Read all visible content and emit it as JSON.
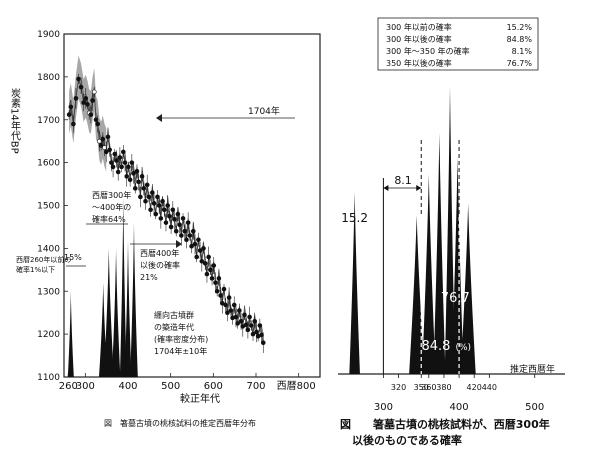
{
  "chart_data": [
    {
      "type": "scatter",
      "ylabel": "炭素14年代BP",
      "xlabel": "較正年代",
      "caption": "図　箸墓古墳の桃核試料の推定西暦年分布",
      "xlim": [
        250,
        850
      ],
      "ylim": [
        1100,
        1900
      ],
      "x_ticks": [
        {
          "v": 260,
          "label": "260"
        },
        {
          "v": 300,
          "label": "300"
        },
        {
          "v": 400,
          "label": "400"
        },
        {
          "v": 500,
          "label": "500"
        },
        {
          "v": 600,
          "label": "600"
        },
        {
          "v": 700,
          "label": "700"
        },
        {
          "v": 800,
          "label": "800"
        }
      ],
      "x_tick_prefix": "西暦",
      "y_ticks": [
        1100,
        1200,
        1300,
        1400,
        1500,
        1600,
        1700,
        1800,
        1900
      ],
      "reference_line": {
        "y": 1704,
        "label": "1704年"
      },
      "calibration_points": [
        [
          262,
          1712
        ],
        [
          266,
          1730
        ],
        [
          272,
          1690
        ],
        [
          278,
          1750
        ],
        [
          284,
          1795
        ],
        [
          290,
          1776
        ],
        [
          296,
          1740
        ],
        [
          301,
          1750
        ],
        [
          305,
          1736
        ],
        [
          309,
          1716
        ],
        [
          313,
          1712
        ],
        [
          317,
          1745
        ],
        [
          321,
          1765
        ],
        [
          325,
          1700
        ],
        [
          329,
          1690
        ],
        [
          333,
          1650
        ],
        [
          337,
          1640
        ],
        [
          341,
          1655
        ],
        [
          345,
          1635
        ],
        [
          349,
          1625
        ],
        [
          353,
          1660
        ],
        [
          357,
          1630
        ],
        [
          361,
          1600
        ],
        [
          365,
          1590
        ],
        [
          369,
          1620
        ],
        [
          373,
          1605
        ],
        [
          377,
          1578
        ],
        [
          381,
          1612
        ],
        [
          385,
          1590
        ],
        [
          389,
          1625
        ],
        [
          393,
          1600
        ],
        [
          397,
          1568
        ],
        [
          401,
          1590
        ],
        [
          405,
          1560
        ],
        [
          409,
          1600
        ],
        [
          413,
          1575
        ],
        [
          417,
          1540
        ],
        [
          421,
          1580
        ],
        [
          425,
          1555
        ],
        [
          429,
          1520
        ],
        [
          433,
          1568
        ],
        [
          437,
          1540
        ],
        [
          441,
          1510
        ],
        [
          445,
          1548
        ],
        [
          449,
          1520
        ],
        [
          453,
          1490
        ],
        [
          457,
          1530
        ],
        [
          461,
          1505
        ],
        [
          465,
          1480
        ],
        [
          469,
          1520
        ],
        [
          473,
          1500
        ],
        [
          477,
          1470
        ],
        [
          481,
          1510
        ],
        [
          485,
          1490
        ],
        [
          489,
          1460
        ],
        [
          493,
          1500
        ],
        [
          497,
          1475
        ],
        [
          501,
          1450
        ],
        [
          505,
          1490
        ],
        [
          509,
          1468
        ],
        [
          513,
          1440
        ],
        [
          517,
          1480
        ],
        [
          521,
          1455
        ],
        [
          525,
          1430
        ],
        [
          529,
          1470
        ],
        [
          533,
          1440
        ],
        [
          537,
          1420
        ],
        [
          541,
          1460
        ],
        [
          545,
          1430
        ],
        [
          549,
          1405
        ],
        [
          553,
          1440
        ],
        [
          557,
          1410
        ],
        [
          561,
          1380
        ],
        [
          565,
          1420
        ],
        [
          569,
          1395
        ],
        [
          573,
          1370
        ],
        [
          577,
          1400
        ],
        [
          581,
          1365
        ],
        [
          585,
          1340
        ],
        [
          589,
          1380
        ],
        [
          593,
          1350
        ],
        [
          597,
          1330
        ],
        [
          601,
          1360
        ],
        [
          605,
          1320
        ],
        [
          609,
          1300
        ],
        [
          613,
          1330
        ],
        [
          617,
          1290
        ],
        [
          621,
          1272
        ],
        [
          625,
          1305
        ],
        [
          629,
          1268
        ],
        [
          633,
          1250
        ],
        [
          637,
          1285
        ],
        [
          641,
          1255
        ],
        [
          645,
          1238
        ],
        [
          649,
          1268
        ],
        [
          653,
          1240
        ],
        [
          657,
          1225
        ],
        [
          661,
          1255
        ],
        [
          665,
          1230
        ],
        [
          669,
          1218
        ],
        [
          673,
          1245
        ],
        [
          677,
          1222
        ],
        [
          681,
          1210
        ],
        [
          685,
          1240
        ],
        [
          689,
          1220
        ],
        [
          693,
          1200
        ],
        [
          697,
          1230
        ],
        [
          701,
          1205
        ],
        [
          705,
          1195
        ],
        [
          709,
          1220
        ],
        [
          713,
          1198
        ],
        [
          717,
          1180
        ]
      ],
      "distribution": {
        "peaks": [
          {
            "center": 266,
            "halfwidth": 7,
            "height": 0.2
          },
          {
            "center": 342,
            "halfwidth": 10,
            "height": 0.22
          },
          {
            "center": 355,
            "halfwidth": 12,
            "height": 0.3
          },
          {
            "center": 372,
            "halfwidth": 10,
            "height": 0.3
          },
          {
            "center": 389,
            "halfwidth": 8,
            "height": 0.42
          },
          {
            "center": 400,
            "halfwidth": 8,
            "height": 0.32
          },
          {
            "center": 414,
            "halfwidth": 9,
            "height": 0.36
          }
        ],
        "baseline": 1100,
        "scale": 1000
      },
      "annotations": [
        {
          "text": "西暦300年",
          "lines": [
            "西暦300年",
            "～400年の",
            "確率64%"
          ]
        },
        {
          "text": "西暦260年以前の確率1%以下",
          "lines": [
            "西暦260年以前の",
            "確率1%以下"
          ]
        },
        {
          "text": "15%",
          "lines": [
            "15%"
          ]
        },
        {
          "text": "西暦400年以後の確率21%",
          "lines": [
            "西暦400年",
            "以後の確率",
            "21%"
          ]
        },
        {
          "text": "纒向古墳群の築造年代(確率密度分布)1704年±10年",
          "lines": [
            "纒向古墳群",
            "の築造年代",
            "(確率密度分布)",
            "1704年±10年"
          ]
        }
      ]
    },
    {
      "type": "area",
      "xlabel": "推定西暦年",
      "caption_lines": [
        "図　　箸墓古墳の桃核試料が、西暦300年",
        "以後のものである確率"
      ],
      "xlim": [
        240,
        540
      ],
      "x_ticks": [
        {
          "v": 300,
          "label": "300",
          "major": true
        },
        {
          "v": 320,
          "label": "320"
        },
        {
          "v": 350,
          "label": "350"
        },
        {
          "v": 360,
          "label": "360"
        },
        {
          "v": 380,
          "label": "380"
        },
        {
          "v": 400,
          "label": "400",
          "major": true
        },
        {
          "v": 420,
          "label": "420"
        },
        {
          "v": 440,
          "label": "440"
        },
        {
          "v": 500,
          "label": "500",
          "major": true
        }
      ],
      "dashed_lines": [
        350,
        400
      ],
      "arrow_annotation": {
        "label": "8.1",
        "from": 300,
        "to": 350
      },
      "probabilities_table": [
        {
          "label": "300 年以前の確率",
          "value": "15.2%"
        },
        {
          "label": "300 年以後の確率",
          "value": "84.8%"
        },
        {
          "label": "300 年～350 年の確率",
          "value": "8.1%"
        },
        {
          "label": "350 年以後の確率",
          "value": "76.7%"
        }
      ],
      "region_labels": [
        {
          "text": "15.2",
          "x": 262
        },
        {
          "text": "76.7",
          "x": 395
        },
        {
          "text": "84.8",
          "suffix": "(%)",
          "x": 382
        }
      ],
      "distribution": {
        "peaks": [
          {
            "center": 262,
            "halfwidth": 7,
            "height": 0.62
          },
          {
            "center": 344,
            "halfwidth": 10,
            "height": 0.54
          },
          {
            "center": 360,
            "halfwidth": 9,
            "height": 0.68
          },
          {
            "center": 374,
            "halfwidth": 8,
            "height": 0.82
          },
          {
            "center": 388,
            "halfwidth": 7,
            "height": 0.98
          },
          {
            "center": 398,
            "halfwidth": 8,
            "height": 0.74
          },
          {
            "center": 412,
            "halfwidth": 10,
            "height": 0.58
          }
        ]
      }
    }
  ]
}
